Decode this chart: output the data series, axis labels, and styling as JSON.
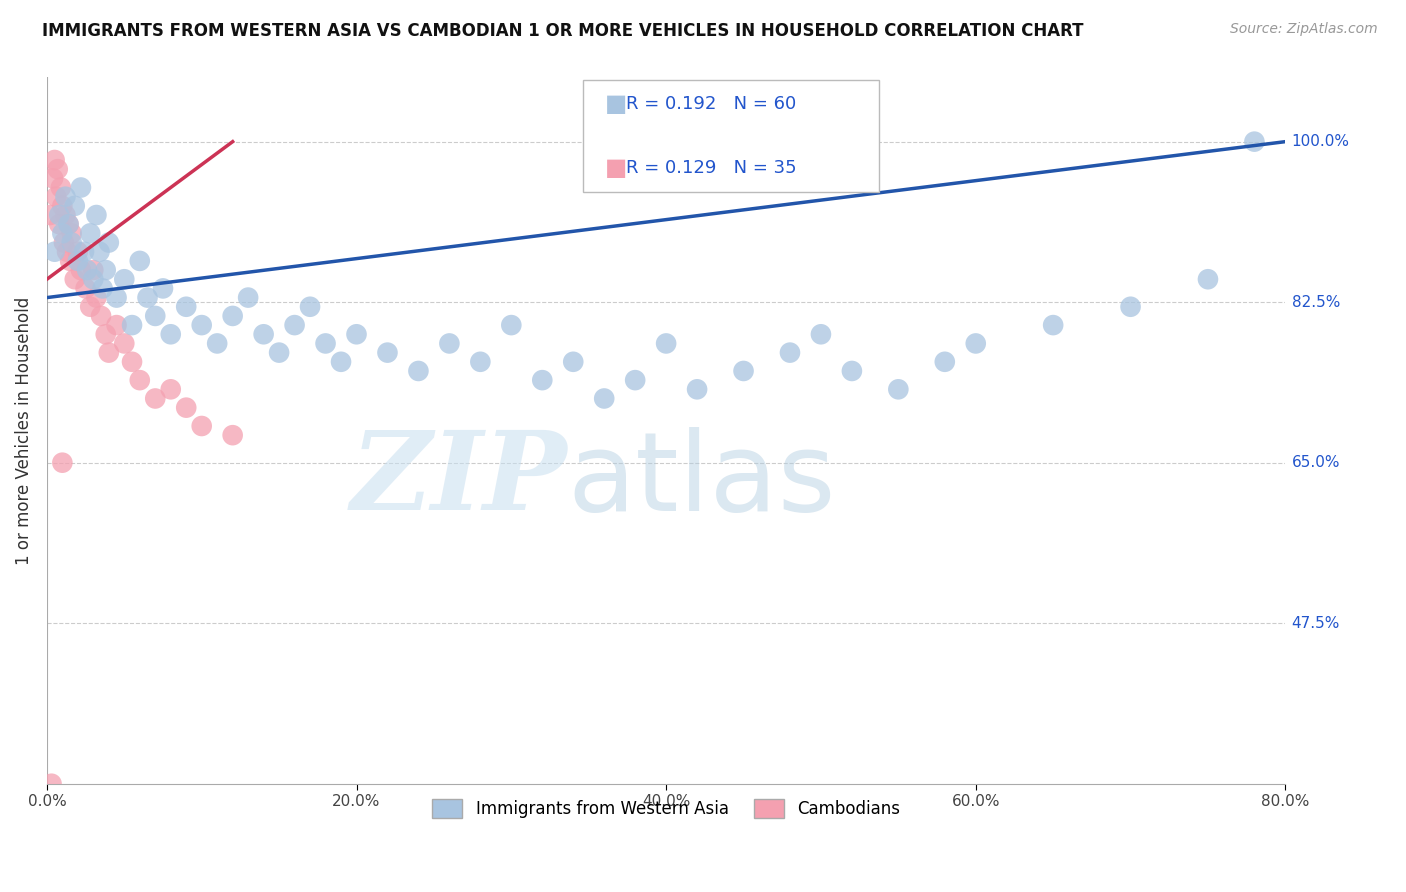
{
  "title": "IMMIGRANTS FROM WESTERN ASIA VS CAMBODIAN 1 OR MORE VEHICLES IN HOUSEHOLD CORRELATION CHART",
  "source": "Source: ZipAtlas.com",
  "ylabel": "1 or more Vehicles in Household",
  "xlim": [
    0.0,
    80.0
  ],
  "ylim": [
    30.0,
    107.0
  ],
  "yticks": [
    47.5,
    65.0,
    82.5,
    100.0
  ],
  "xticks": [
    0.0,
    20.0,
    40.0,
    60.0,
    80.0
  ],
  "xtick_labels": [
    "0.0%",
    "20.0%",
    "40.0%",
    "60.0%",
    "80.0%"
  ],
  "ytick_labels": [
    "47.5%",
    "65.0%",
    "82.5%",
    "100.0%"
  ],
  "blue_R": 0.192,
  "blue_N": 60,
  "pink_R": 0.129,
  "pink_N": 35,
  "blue_color": "#a8c4e0",
  "pink_color": "#f4a0b0",
  "blue_line_color": "#2255aa",
  "pink_line_color": "#cc3355",
  "watermark_zip": "ZIP",
  "watermark_atlas": "atlas",
  "legend_blue_label": "Immigrants from Western Asia",
  "legend_pink_label": "Cambodians",
  "blue_scatter_x": [
    0.5,
    0.8,
    1.0,
    1.2,
    1.4,
    1.6,
    1.8,
    2.0,
    2.2,
    2.4,
    2.6,
    2.8,
    3.0,
    3.2,
    3.4,
    3.6,
    3.8,
    4.0,
    4.5,
    5.0,
    5.5,
    6.0,
    6.5,
    7.0,
    7.5,
    8.0,
    9.0,
    10.0,
    11.0,
    12.0,
    13.0,
    14.0,
    15.0,
    16.0,
    17.0,
    18.0,
    19.0,
    20.0,
    22.0,
    24.0,
    26.0,
    28.0,
    30.0,
    32.0,
    34.0,
    36.0,
    38.0,
    40.0,
    42.0,
    45.0,
    48.0,
    50.0,
    52.0,
    55.0,
    58.0,
    60.0,
    65.0,
    70.0,
    75.0,
    78.0
  ],
  "blue_scatter_y": [
    88.0,
    92.0,
    90.0,
    94.0,
    91.0,
    89.0,
    93.0,
    87.0,
    95.0,
    88.0,
    86.0,
    90.0,
    85.0,
    92.0,
    88.0,
    84.0,
    86.0,
    89.0,
    83.0,
    85.0,
    80.0,
    87.0,
    83.0,
    81.0,
    84.0,
    79.0,
    82.0,
    80.0,
    78.0,
    81.0,
    83.0,
    79.0,
    77.0,
    80.0,
    82.0,
    78.0,
    76.0,
    79.0,
    77.0,
    75.0,
    78.0,
    76.0,
    80.0,
    74.0,
    76.0,
    72.0,
    74.0,
    78.0,
    73.0,
    75.0,
    77.0,
    79.0,
    75.0,
    73.0,
    76.0,
    78.0,
    80.0,
    82.0,
    85.0,
    100.0
  ],
  "pink_scatter_x": [
    0.2,
    0.4,
    0.5,
    0.6,
    0.7,
    0.8,
    0.9,
    1.0,
    1.1,
    1.2,
    1.3,
    1.4,
    1.5,
    1.6,
    1.8,
    2.0,
    2.2,
    2.5,
    2.8,
    3.0,
    3.2,
    3.5,
    3.8,
    4.0,
    4.5,
    5.0,
    5.5,
    6.0,
    7.0,
    8.0,
    9.0,
    10.0,
    12.0,
    1.0,
    0.3
  ],
  "pink_scatter_y": [
    92.0,
    96.0,
    98.0,
    94.0,
    97.0,
    91.0,
    95.0,
    93.0,
    89.0,
    92.0,
    88.0,
    91.0,
    87.0,
    90.0,
    85.0,
    88.0,
    86.0,
    84.0,
    82.0,
    86.0,
    83.0,
    81.0,
    79.0,
    77.0,
    80.0,
    78.0,
    76.0,
    74.0,
    72.0,
    73.0,
    71.0,
    69.0,
    68.0,
    65.0,
    30.0
  ],
  "blue_trend_x0": 0.0,
  "blue_trend_y0": 83.0,
  "blue_trend_x1": 80.0,
  "blue_trend_y1": 100.0,
  "pink_trend_x0": 0.0,
  "pink_trend_y0": 85.0,
  "pink_trend_x1": 12.0,
  "pink_trend_y1": 100.0
}
